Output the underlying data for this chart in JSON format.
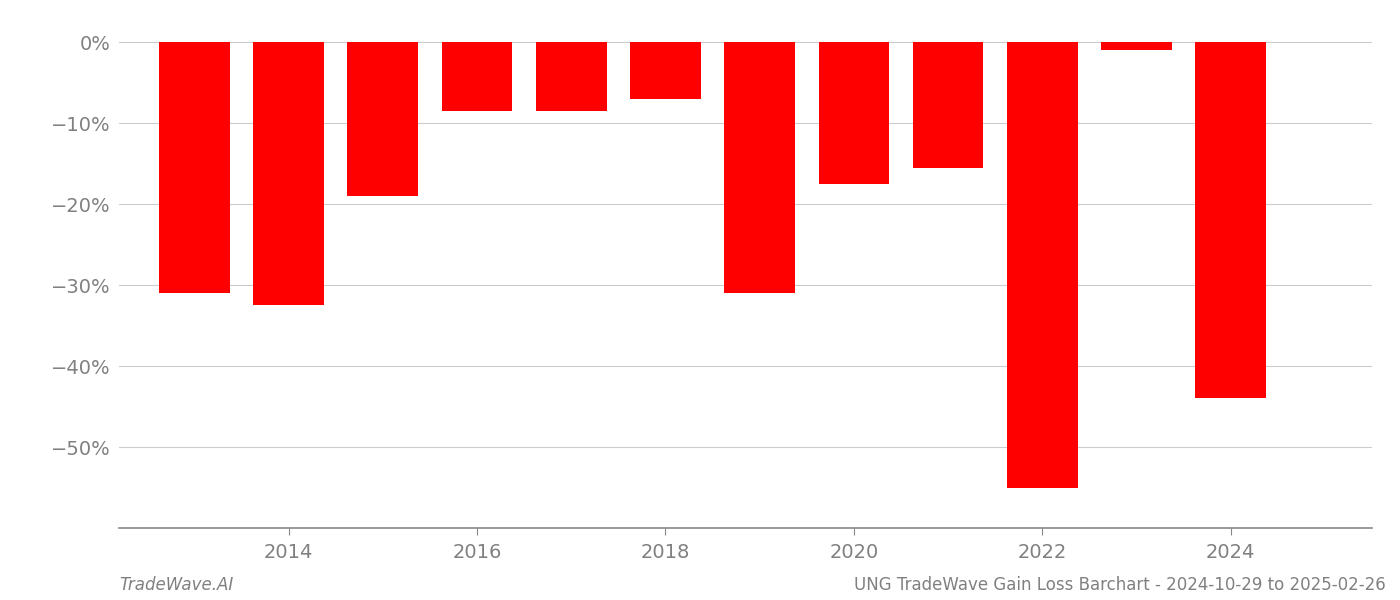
{
  "years": [
    2013,
    2014,
    2015,
    2016,
    2017,
    2018,
    2019,
    2020,
    2021,
    2022,
    2023,
    2024
  ],
  "values": [
    -31.0,
    -32.5,
    -19.0,
    -8.5,
    -8.5,
    -7.0,
    -31.0,
    -17.5,
    -15.5,
    -55.0,
    -1.0,
    -44.0
  ],
  "bar_color": "#FF0000",
  "background_color": "#FFFFFF",
  "grid_color": "#CCCCCC",
  "ylabel_color": "#808080",
  "xlabel_color": "#808080",
  "yticks": [
    0,
    -10,
    -20,
    -30,
    -40,
    -50
  ],
  "ylim": [
    -60,
    3
  ],
  "xlim": [
    2012.2,
    2025.5
  ],
  "xticks": [
    2014,
    2016,
    2018,
    2020,
    2022,
    2024
  ],
  "footer_left": "TradeWave.AI",
  "footer_right": "UNG TradeWave Gain Loss Barchart - 2024-10-29 to 2025-02-26",
  "bar_width": 0.75,
  "tick_fontsize": 14,
  "footer_fontsize": 12
}
